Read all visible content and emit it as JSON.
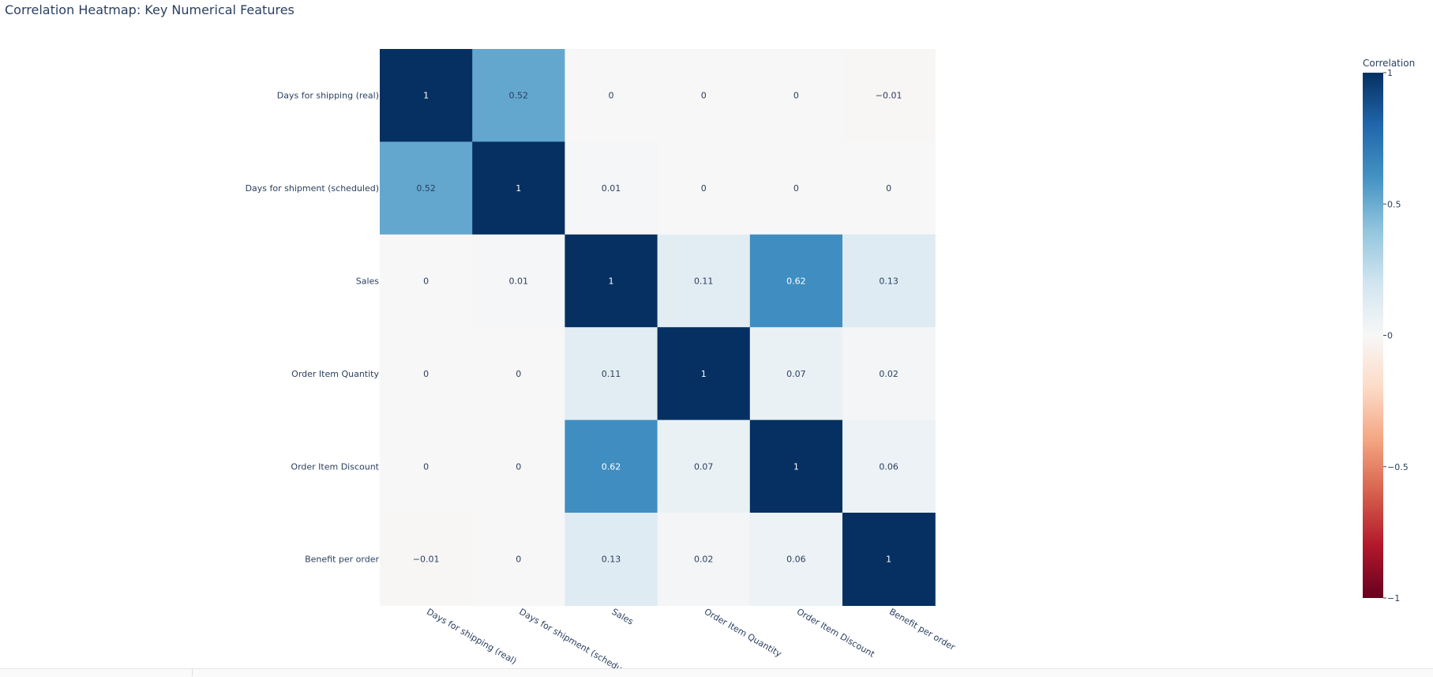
{
  "title": "Correlation Heatmap: Key Numerical Features",
  "chart_data": {
    "type": "heatmap",
    "title": "Correlation Heatmap: Key Numerical Features",
    "x_categories": [
      "Days for shipping (real)",
      "Days for shipment (scheduled)",
      "Sales",
      "Order Item Quantity",
      "Order Item Discount",
      "Benefit per order"
    ],
    "x_tick_labels": [
      "Days for shipping (real)",
      "Days for shipment (schedu",
      "Sales",
      "Order Item Quantity",
      "Order Item Discount",
      "Benefit per order"
    ],
    "y_categories": [
      "Days for shipping (real)",
      "Days for shipment (scheduled)",
      "Sales",
      "Order Item Quantity",
      "Order Item Discount",
      "Benefit per order"
    ],
    "z": [
      [
        1,
        0.52,
        0,
        0,
        0,
        -0.01
      ],
      [
        0.52,
        1,
        0.01,
        0,
        0,
        0
      ],
      [
        0,
        0.01,
        1,
        0.11,
        0.62,
        0.13
      ],
      [
        0,
        0,
        0.11,
        1,
        0.07,
        0.02
      ],
      [
        0,
        0,
        0.62,
        0.07,
        1,
        0.06
      ],
      [
        -0.01,
        0,
        0.13,
        0.02,
        0.06,
        1
      ]
    ],
    "text_labels": [
      [
        "1",
        "0.52",
        "0",
        "0",
        "0",
        "−0.01"
      ],
      [
        "0.52",
        "1",
        "0.01",
        "0",
        "0",
        "0"
      ],
      [
        "0",
        "0.01",
        "1",
        "0.11",
        "0.62",
        "0.13"
      ],
      [
        "0",
        "0",
        "0.11",
        "1",
        "0.07",
        "0.02"
      ],
      [
        "0",
        "0",
        "0.62",
        "0.07",
        "1",
        "0.06"
      ],
      [
        "−0.01",
        "0",
        "0.13",
        "0.02",
        "0.06",
        "1"
      ]
    ],
    "zmin": -1,
    "zmax": 1,
    "colorscale": "RdBu",
    "colorbar": {
      "title": "Correlation",
      "tickvals": [
        1,
        0.5,
        0,
        -0.5,
        -1
      ],
      "ticktext": [
        "1",
        "0.5",
        "0",
        "−0.5",
        "−1"
      ]
    }
  },
  "colors": {
    "text": "#2a3f5f",
    "scale": [
      "#67001f",
      "#b2182b",
      "#d6604d",
      "#f4a582",
      "#fddbc7",
      "#f7f7f7",
      "#d1e5f0",
      "#92c5de",
      "#4393c3",
      "#2166ac",
      "#053061"
    ]
  }
}
